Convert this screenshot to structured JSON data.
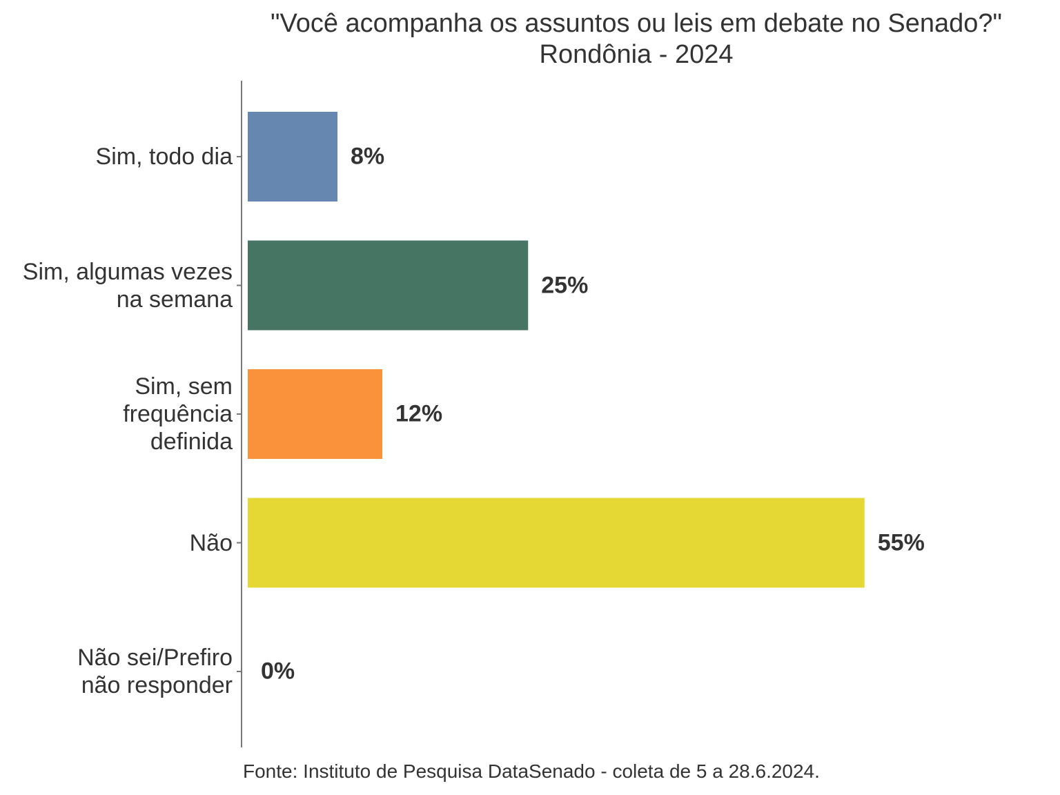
{
  "chart_data": {
    "type": "bar",
    "orientation": "horizontal",
    "title": "\"Você acompanha os assuntos ou leis em debate no Senado?\"",
    "subtitle": "Rondônia - 2024",
    "categories": [
      "Sim, todo dia",
      "Sim, algumas vezes\nna semana",
      "Sim, sem\nfrequência\ndefinida",
      "Não",
      "Não sei/Prefiro\nnão responder"
    ],
    "values": [
      8,
      25,
      12,
      55,
      0
    ],
    "value_labels": [
      "8%",
      "25%",
      "12%",
      "55%",
      "0%"
    ],
    "colors": [
      "#6688b0",
      "#467564",
      "#fa923c",
      "#e5d834",
      "#999999"
    ],
    "xlim": [
      0,
      60
    ],
    "source": "Fonte: Instituto de Pesquisa DataSenado - coleta de 5 a 28.6.2024."
  }
}
